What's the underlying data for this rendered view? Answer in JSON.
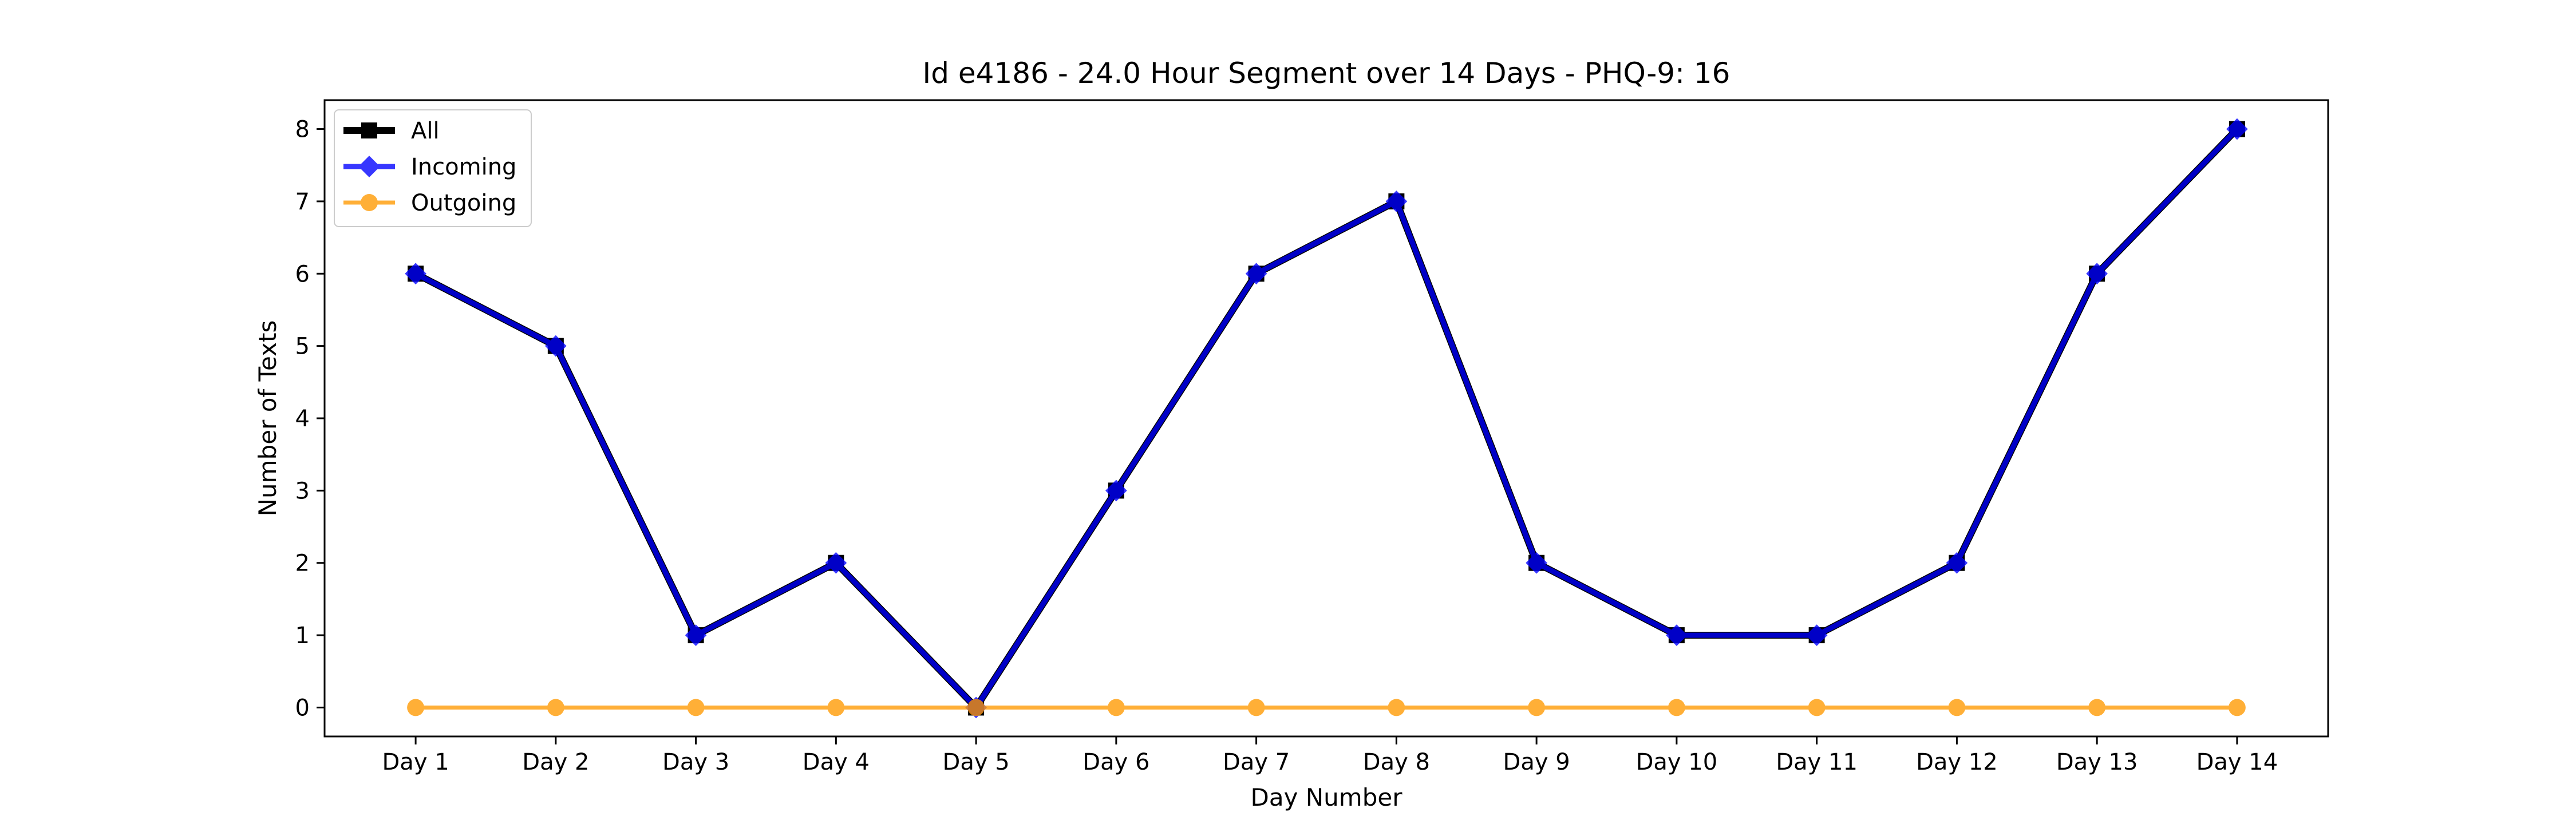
{
  "chart_data": {
    "type": "line",
    "title": "Id e4186 - 24.0 Hour Segment over 14 Days - PHQ-9: 16",
    "xlabel": "Day Number",
    "ylabel": "Number of Texts",
    "categories": [
      "Day 1",
      "Day 2",
      "Day 3",
      "Day 4",
      "Day 5",
      "Day 6",
      "Day 7",
      "Day 8",
      "Day 9",
      "Day 10",
      "Day 11",
      "Day 12",
      "Day 13",
      "Day 14"
    ],
    "yticks": [
      "0",
      "1",
      "2",
      "3",
      "4",
      "5",
      "6",
      "7",
      "8"
    ],
    "ylim": [
      -0.4,
      8.4
    ],
    "grid": false,
    "legend_position": "top-left",
    "series": [
      {
        "name": "All",
        "color": "#000000",
        "marker": "square",
        "values": [
          6,
          5,
          1,
          2,
          0,
          3,
          6,
          7,
          2,
          1,
          1,
          2,
          6,
          8
        ]
      },
      {
        "name": "Incoming",
        "color": "#0000ff",
        "marker": "diamond",
        "values": [
          6,
          5,
          1,
          2,
          0,
          3,
          6,
          7,
          2,
          1,
          1,
          2,
          6,
          8
        ]
      },
      {
        "name": "Outgoing",
        "color": "#ff9900",
        "marker": "circle",
        "values": [
          0,
          0,
          0,
          0,
          0,
          0,
          0,
          0,
          0,
          0,
          0,
          0,
          0,
          0
        ]
      }
    ]
  }
}
